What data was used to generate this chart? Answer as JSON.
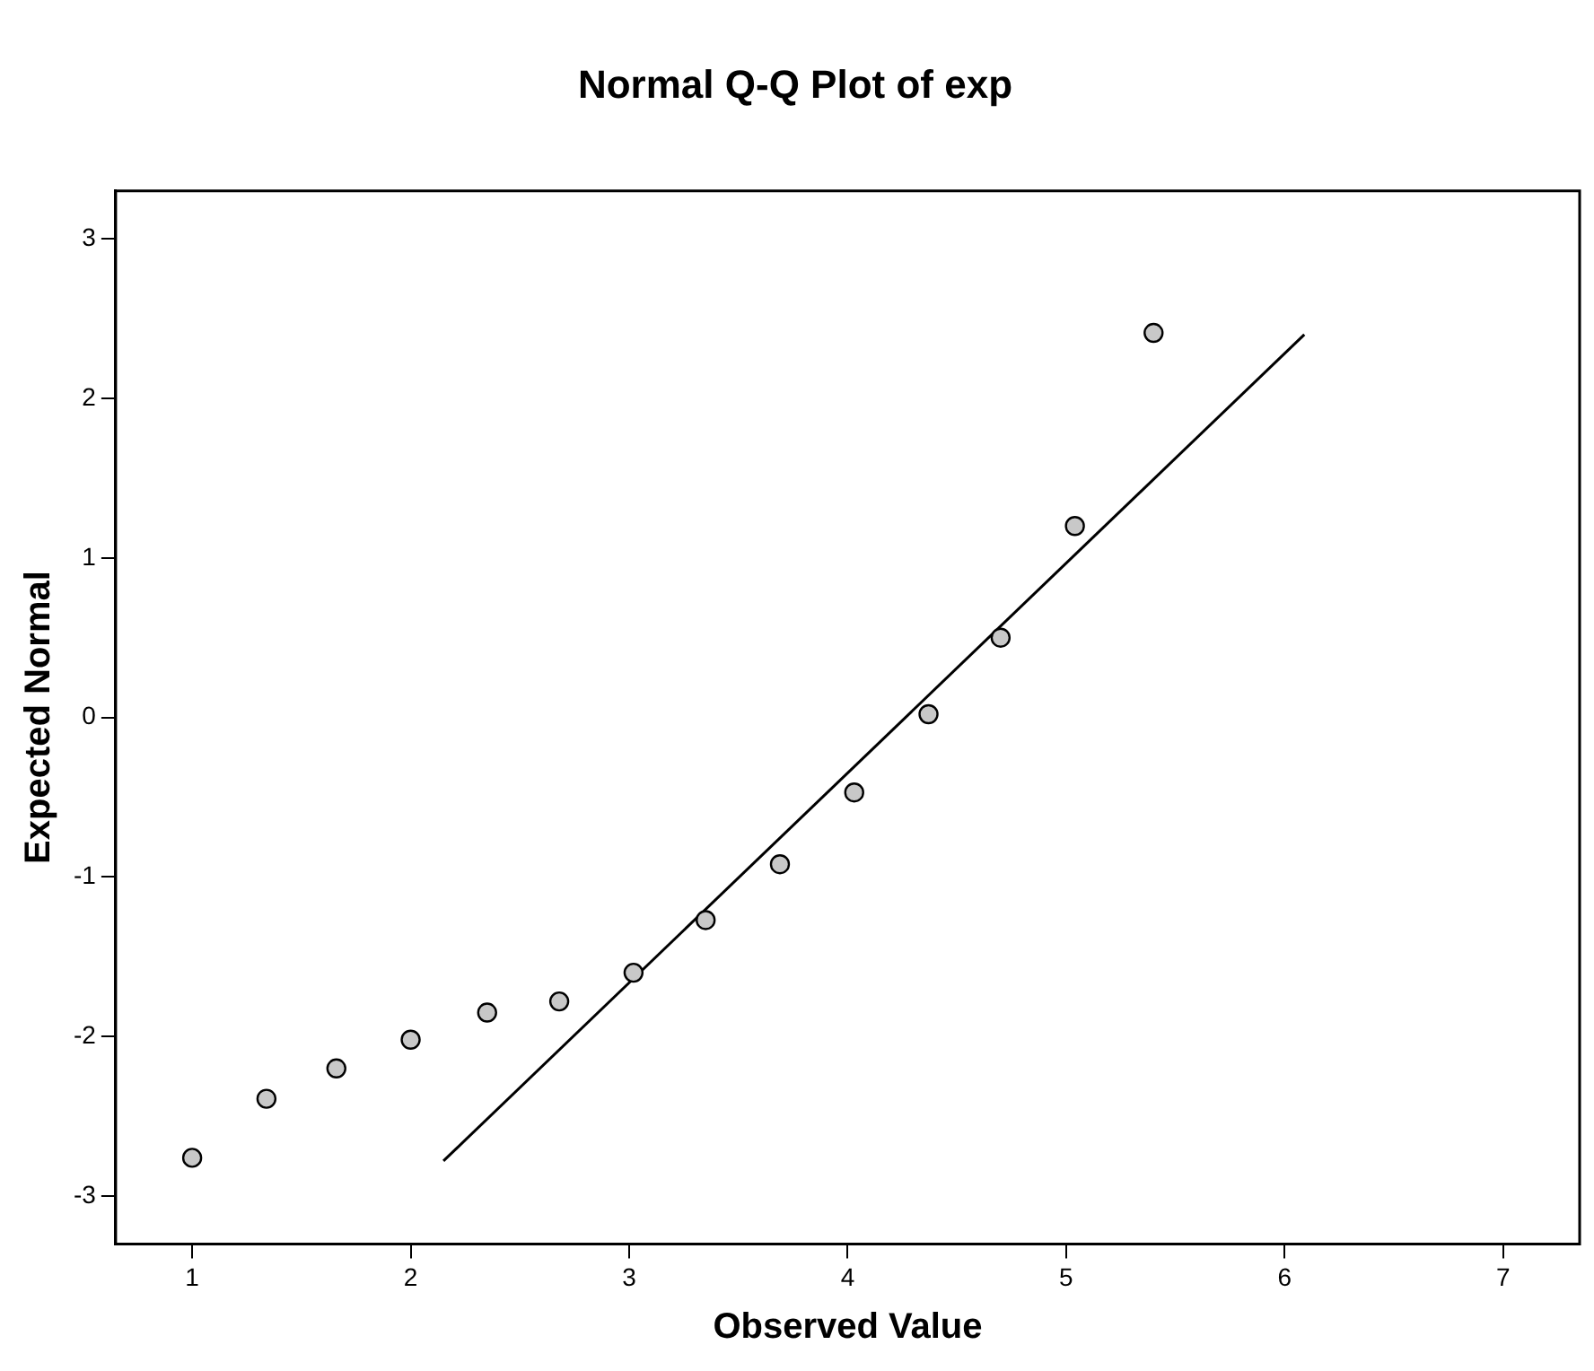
{
  "chart_data": {
    "type": "scatter",
    "title": "Normal Q-Q Plot of exp",
    "xlabel": "Observed Value",
    "ylabel": "Expected Normal",
    "xlim": [
      0.65,
      7.35
    ],
    "xticks": [
      1,
      2,
      3,
      4,
      5,
      6,
      7
    ],
    "ylim": [
      -3.3,
      3.3
    ],
    "yticks": [
      -3,
      -2,
      -1,
      0,
      1,
      2,
      3
    ],
    "grid": false,
    "legend": false,
    "marker": "circle",
    "series": [
      {
        "type": "scatter",
        "color": "#c8c8c8",
        "x": [
          1.0,
          1.34,
          1.66,
          2.0,
          2.35,
          2.68,
          3.02,
          3.35,
          3.69,
          4.03,
          4.37,
          4.7,
          5.04,
          5.4
        ],
        "values": [
          -2.76,
          -2.39,
          -2.2,
          -2.02,
          -1.85,
          -1.78,
          -1.6,
          -1.27,
          -0.92,
          -0.47,
          0.02,
          0.5,
          1.2,
          2.41
        ]
      },
      {
        "type": "line",
        "color": "#000000",
        "marker": "none",
        "x": [
          2.15,
          6.09
        ],
        "values": [
          -2.78,
          2.4
        ]
      }
    ]
  }
}
